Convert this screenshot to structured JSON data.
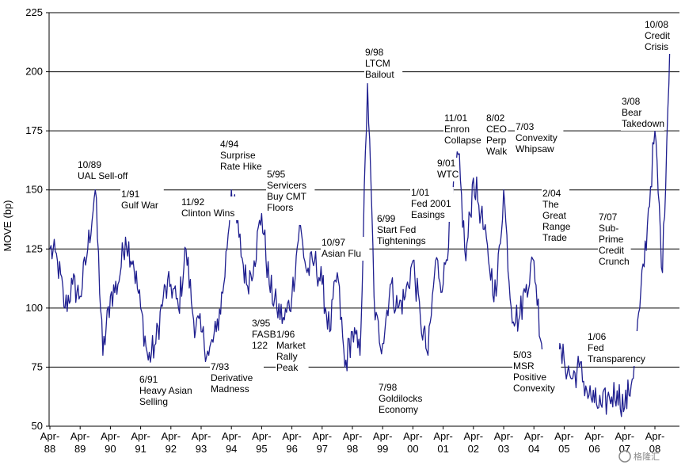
{
  "chart_data": {
    "type": "line",
    "ylabel": "MOVE (bp)",
    "ylim": [
      50,
      225
    ],
    "y_ticks": [
      50,
      75,
      100,
      125,
      150,
      175,
      200,
      225
    ],
    "grid": "horizontal",
    "x_ticks": [
      {
        "l1": "Apr-",
        "l2": "88"
      },
      {
        "l1": "Apr-",
        "l2": "89"
      },
      {
        "l1": "Apr-",
        "l2": "90"
      },
      {
        "l1": "Apr-",
        "l2": "91"
      },
      {
        "l1": "Apr-",
        "l2": "92"
      },
      {
        "l1": "Apr-",
        "l2": "93"
      },
      {
        "l1": "Apr-",
        "l2": "94"
      },
      {
        "l1": "Apr-",
        "l2": "95"
      },
      {
        "l1": "Apr-",
        "l2": "96"
      },
      {
        "l1": "Apr-",
        "l2": "97"
      },
      {
        "l1": "Apr-",
        "l2": "98"
      },
      {
        "l1": "Apr-",
        "l2": "99"
      },
      {
        "l1": "Apr-",
        "l2": "00"
      },
      {
        "l1": "Apr-",
        "l2": "01"
      },
      {
        "l1": "Apr-",
        "l2": "02"
      },
      {
        "l1": "Apr-",
        "l2": "03"
      },
      {
        "l1": "Apr-",
        "l2": "04"
      },
      {
        "l1": "Apr-",
        "l2": "05"
      },
      {
        "l1": "Apr-",
        "l2": "06"
      },
      {
        "l1": "Apr-",
        "l2": "07"
      },
      {
        "l1": "Apr-",
        "l2": "08"
      }
    ],
    "line_color": "#1f1f8f",
    "series": [
      {
        "x": [
          "1988-04",
          "1988-07",
          "1988-10",
          "1989-01",
          "1989-04",
          "1989-07",
          "1989-10",
          "1990-01",
          "1990-04",
          "1990-07",
          "1990-10",
          "1991-01",
          "1991-04",
          "1991-07",
          "1991-10",
          "1992-01",
          "1992-04",
          "1992-07",
          "1992-10",
          "1993-01",
          "1993-04",
          "1993-07",
          "1993-10",
          "1994-01",
          "1994-04",
          "1994-07",
          "1994-10",
          "1995-01",
          "1995-04",
          "1995-07",
          "1995-10",
          "1996-01",
          "1996-04",
          "1996-07",
          "1996-10",
          "1997-01",
          "1997-04",
          "1997-07",
          "1997-10",
          "1998-01",
          "1998-04",
          "1998-07",
          "1998-10",
          "1999-01",
          "1999-04",
          "1999-07",
          "1999-10",
          "2000-01",
          "2000-04",
          "2000-07",
          "2000-10",
          "2001-01",
          "2001-04",
          "2001-07",
          "2001-10",
          "2002-01",
          "2002-04",
          "2002-07",
          "2002-10",
          "2003-01",
          "2003-04",
          "2003-07",
          "2003-10",
          "2004-01",
          "2004-04",
          "2004-07",
          "2004-10",
          "2005-01",
          "2005-04",
          "2005-07",
          "2005-10",
          "2006-01",
          "2006-04",
          "2006-07",
          "2006-10",
          "2007-01",
          "2007-04",
          "2007-07",
          "2007-10",
          "2008-01",
          "2008-04",
          "2008-07",
          "2008-10"
        ],
        "values": [
          125,
          120,
          100,
          110,
          105,
          125,
          150,
          80,
          105,
          110,
          130,
          120,
          100,
          78,
          85,
          105,
          110,
          100,
          125,
          95,
          90,
          80,
          90,
          110,
          150,
          130,
          110,
          120,
          140,
          110,
          100,
          95,
          105,
          135,
          115,
          120,
          110,
          90,
          115,
          75,
          90,
          80,
          195,
          95,
          85,
          110,
          100,
          105,
          120,
          95,
          80,
          120,
          110,
          140,
          165,
          120,
          155,
          140,
          120,
          105,
          150,
          100,
          95,
          110,
          120,
          85,
          70,
          80,
          78,
          70,
          75,
          65,
          60,
          58,
          62,
          65,
          58,
          70,
          100,
          135,
          175,
          115,
          215
        ]
      }
    ],
    "annotations": [
      {
        "lines": [
          "10/89",
          "UAL Sell-off"
        ]
      },
      {
        "lines": [
          "1/91",
          "Gulf War"
        ]
      },
      {
        "lines": [
          "6/91",
          "Heavy Asian",
          "Selling"
        ]
      },
      {
        "lines": [
          "11/92",
          "Clinton Wins"
        ]
      },
      {
        "lines": [
          "7/93",
          "Derivative",
          "Madness"
        ]
      },
      {
        "lines": [
          "4/94",
          "Surprise",
          "Rate Hike"
        ]
      },
      {
        "lines": [
          "5/95",
          "Servicers",
          "Buy CMT",
          "Floors"
        ]
      },
      {
        "lines": [
          "3/95",
          "FASB",
          "122"
        ]
      },
      {
        "lines": [
          "1/96",
          "Market",
          "Rally",
          "Peak"
        ]
      },
      {
        "lines": [
          "10/97",
          "Asian Flu"
        ]
      },
      {
        "lines": [
          "9/98",
          "LTCM",
          "Bailout"
        ]
      },
      {
        "lines": [
          "7/98",
          "Goldilocks",
          "Economy"
        ]
      },
      {
        "lines": [
          "6/99",
          "Start Fed",
          "Tightenings"
        ]
      },
      {
        "lines": [
          "1/01",
          "Fed 2001",
          "Easings"
        ]
      },
      {
        "lines": [
          "9/01",
          "WTC"
        ]
      },
      {
        "lines": [
          "11/01",
          "Enron",
          "Collapse"
        ]
      },
      {
        "lines": [
          "8/02",
          "CEO",
          "Perp",
          "Walk"
        ]
      },
      {
        "lines": [
          "7/03",
          "Convexity",
          "Whipsaw"
        ]
      },
      {
        "lines": [
          "5/03",
          "MSR",
          "Positive",
          "Convexity"
        ]
      },
      {
        "lines": [
          "2/04",
          "The",
          "Great",
          "Range",
          "Trade"
        ]
      },
      {
        "lines": [
          "1/06",
          "Fed",
          "Transparency"
        ]
      },
      {
        "lines": [
          "7/07",
          "Sub-",
          "Prime",
          "Credit",
          "Crunch"
        ]
      },
      {
        "lines": [
          "3/08",
          "Bear",
          "Takedown"
        ]
      },
      {
        "lines": [
          "10/08",
          "Credit",
          "Crisis"
        ]
      }
    ]
  },
  "watermark": {
    "text": "格隆汇"
  }
}
